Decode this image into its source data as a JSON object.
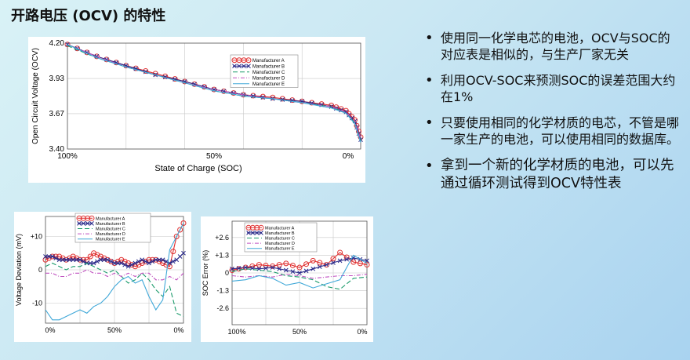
{
  "title": "开路电压 (OCV) 的特性",
  "bullets": [
    "使用同一化学电芯的电池，OCV与SOC的对应表是相似的，与生产厂家无关",
    "利用OCV-SOC来预测SOC的误差范围大约在1%",
    "只要使用相同的化学材质的电芯，不管是哪一家生产的电池，可以使用相同的数据库。",
    "拿到一个新的化学材质的电池，可以先通过循环测试得到OCV特性表"
  ],
  "colors": {
    "A": "#e03030",
    "B": "#2a2a8a",
    "C": "#1a9a6a",
    "D": "#c050c0",
    "E": "#40a8d8"
  },
  "chart_data": [
    {
      "type": "line",
      "xlabel": "State of Charge (SOC)",
      "ylabel": "Open Circuit Voltage (OCV)",
      "xticks": [
        "100%",
        "50%",
        "0%"
      ],
      "yticks": [
        "4.20",
        "3.93",
        "3.67",
        "3.40"
      ],
      "ylim": [
        3.4,
        4.2
      ],
      "legend": [
        "Manufacturer A",
        "Manufacturer B",
        "Manufacturer C",
        "Manufacturer D",
        "Manufacturer E"
      ],
      "legend_position": "top-right",
      "grid": true,
      "series": [
        {
          "name": "Manufacturer A",
          "x": [
            100,
            90,
            80,
            70,
            60,
            50,
            40,
            30,
            20,
            10,
            5,
            2,
            0
          ],
          "y": [
            4.19,
            4.1,
            4.03,
            3.97,
            3.91,
            3.85,
            3.81,
            3.79,
            3.76,
            3.73,
            3.69,
            3.62,
            3.49
          ]
        },
        {
          "name": "Manufacturer B",
          "x": [
            100,
            90,
            80,
            70,
            60,
            50,
            40,
            30,
            20,
            10,
            5,
            2,
            0
          ],
          "y": [
            4.19,
            4.1,
            4.03,
            3.96,
            3.91,
            3.85,
            3.81,
            3.78,
            3.76,
            3.72,
            3.68,
            3.61,
            3.47
          ]
        },
        {
          "name": "Manufacturer C",
          "x": [
            100,
            90,
            80,
            70,
            60,
            50,
            40,
            30,
            20,
            10,
            5,
            2,
            0
          ],
          "y": [
            4.18,
            4.09,
            4.02,
            3.96,
            3.9,
            3.84,
            3.8,
            3.78,
            3.75,
            3.72,
            3.67,
            3.6,
            3.46
          ]
        },
        {
          "name": "Manufacturer D",
          "x": [
            100,
            90,
            80,
            70,
            60,
            50,
            40,
            30,
            20,
            10,
            5,
            2,
            0
          ],
          "y": [
            4.19,
            4.1,
            4.02,
            3.96,
            3.9,
            3.85,
            3.81,
            3.78,
            3.75,
            3.72,
            3.68,
            3.61,
            3.48
          ]
        },
        {
          "name": "Manufacturer E",
          "x": [
            100,
            90,
            80,
            70,
            60,
            50,
            40,
            30,
            20,
            10,
            5,
            2,
            0
          ],
          "y": [
            4.19,
            4.09,
            4.02,
            3.96,
            3.9,
            3.84,
            3.8,
            3.78,
            3.75,
            3.71,
            3.67,
            3.59,
            3.45
          ]
        }
      ]
    },
    {
      "type": "line",
      "xlabel": "",
      "ylabel": "Voltage Deviation (mV)",
      "xticks": [
        "0%",
        "50%",
        "0%"
      ],
      "yticks": [
        "+10",
        "0",
        "-10"
      ],
      "ylim": [
        -16,
        16
      ],
      "legend": [
        "Manufacturer A",
        "Manufacturer B",
        "Manufacturer C",
        "Manufacturer D",
        "Manufacturer E"
      ],
      "legend_position": "top",
      "grid": true,
      "series": [
        {
          "name": "Manufacturer A",
          "x": [
            0,
            5,
            10,
            15,
            20,
            25,
            30,
            35,
            40,
            45,
            50,
            55,
            60,
            65,
            70,
            75,
            80,
            85,
            90,
            95,
            100
          ],
          "y": [
            3,
            4,
            4,
            3,
            4,
            3,
            3,
            5,
            4,
            3,
            2,
            3,
            2,
            1,
            2,
            3,
            3,
            2,
            1,
            10,
            14
          ]
        },
        {
          "name": "Manufacturer B",
          "x": [
            0,
            5,
            10,
            15,
            20,
            25,
            30,
            35,
            40,
            45,
            50,
            55,
            60,
            65,
            70,
            75,
            80,
            85,
            90,
            95,
            100
          ],
          "y": [
            4,
            4,
            3,
            3,
            3,
            3,
            2,
            2,
            3,
            3,
            2,
            2,
            1,
            2,
            3,
            2,
            3,
            3,
            2,
            3,
            5
          ]
        },
        {
          "name": "Manufacturer C",
          "x": [
            0,
            5,
            10,
            15,
            20,
            25,
            30,
            35,
            40,
            45,
            50,
            55,
            60,
            65,
            70,
            75,
            80,
            85,
            90,
            95,
            100
          ],
          "y": [
            1,
            2,
            1,
            0,
            1,
            1,
            2,
            1,
            0,
            -1,
            0,
            -2,
            -4,
            -3,
            -1,
            -3,
            -6,
            -8,
            -5,
            -13,
            -14
          ]
        },
        {
          "name": "Manufacturer D",
          "x": [
            0,
            5,
            10,
            15,
            20,
            25,
            30,
            35,
            40,
            45,
            50,
            55,
            60,
            65,
            70,
            75,
            80,
            85,
            90,
            95,
            100
          ],
          "y": [
            -1,
            -1,
            -2,
            -2,
            -1,
            -1,
            0,
            -1,
            -1,
            -2,
            -1,
            -2,
            -1,
            -2,
            -1,
            -1,
            -3,
            -3,
            -2,
            -3,
            -1
          ]
        },
        {
          "name": "Manufacturer E",
          "x": [
            0,
            5,
            10,
            15,
            20,
            25,
            30,
            35,
            40,
            45,
            50,
            55,
            60,
            65,
            70,
            75,
            80,
            85,
            90,
            95,
            100
          ],
          "y": [
            -12,
            -15,
            -15,
            -14,
            -13,
            -12,
            -13,
            -11,
            -10,
            -8,
            -5,
            -3,
            -2,
            -4,
            -3,
            -8,
            -12,
            -9,
            6,
            10,
            14
          ]
        }
      ]
    },
    {
      "type": "line",
      "xlabel": "",
      "ylabel": "SOC Error (%)",
      "xticks": [
        "100%",
        "50%",
        "0%"
      ],
      "yticks": [
        "+2.6",
        "+1.3",
        "0",
        "-1.3",
        "-2.6"
      ],
      "ylim": [
        -3.8,
        3.8
      ],
      "legend": [
        "Manufacturer A",
        "Manufacturer B",
        "Manufacturer C",
        "Manufacturer D",
        "Manufacturer E"
      ],
      "legend_position": "top-left",
      "grid": true,
      "series": [
        {
          "name": "Manufacturer A",
          "x": [
            100,
            90,
            80,
            70,
            60,
            50,
            40,
            30,
            20,
            10,
            0
          ],
          "y": [
            0.2,
            0.4,
            0.6,
            0.5,
            0.7,
            0.4,
            0.9,
            0.6,
            1.5,
            0.8,
            0.6
          ]
        },
        {
          "name": "Manufacturer B",
          "x": [
            100,
            90,
            80,
            70,
            60,
            50,
            40,
            30,
            20,
            10,
            0
          ],
          "y": [
            0.3,
            0.4,
            0.3,
            0.4,
            0.2,
            0.0,
            0.3,
            0.6,
            0.9,
            1.1,
            0.9
          ]
        },
        {
          "name": "Manufacturer C",
          "x": [
            100,
            90,
            80,
            70,
            60,
            50,
            40,
            30,
            20,
            10,
            0
          ],
          "y": [
            0.1,
            0.3,
            0.2,
            0.1,
            -0.2,
            -0.3,
            -0.5,
            -1.0,
            -1.2,
            -0.4,
            -0.3
          ]
        },
        {
          "name": "Manufacturer D",
          "x": [
            100,
            90,
            80,
            70,
            60,
            50,
            40,
            30,
            20,
            10,
            0
          ],
          "y": [
            -0.2,
            -0.3,
            -0.2,
            -0.3,
            -0.1,
            -0.2,
            -0.4,
            -0.3,
            -0.2,
            -0.2,
            -0.1
          ]
        },
        {
          "name": "Manufacturer E",
          "x": [
            100,
            90,
            80,
            70,
            60,
            50,
            40,
            30,
            20,
            10,
            0
          ],
          "y": [
            -0.6,
            -0.5,
            -0.2,
            -0.4,
            -0.9,
            -0.7,
            -1.1,
            -0.8,
            -0.5,
            1.3,
            0.7
          ]
        }
      ]
    }
  ]
}
